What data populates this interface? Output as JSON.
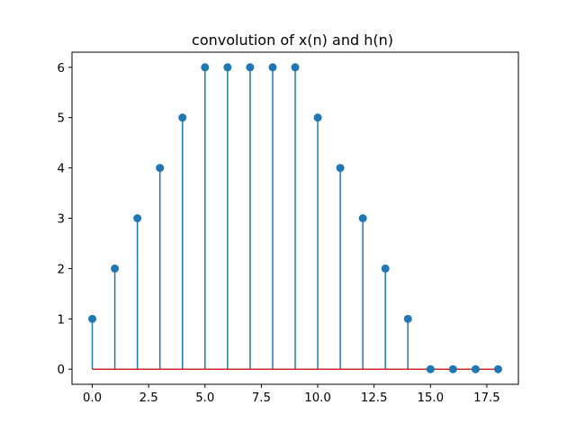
{
  "chart_data": {
    "type": "stem",
    "title": "convolution of x(n) and h(n)",
    "xlabel": "",
    "ylabel": "",
    "x": [
      0,
      1,
      2,
      3,
      4,
      5,
      6,
      7,
      8,
      9,
      10,
      11,
      12,
      13,
      14,
      15,
      16,
      17,
      18
    ],
    "values": [
      1,
      2,
      3,
      4,
      5,
      6,
      6,
      6,
      6,
      6,
      5,
      4,
      3,
      2,
      1,
      0,
      0,
      0,
      0
    ],
    "xlim": [
      -0.9,
      18.9
    ],
    "ylim": [
      -0.3,
      6.3
    ],
    "xticks": [
      0.0,
      2.5,
      5.0,
      7.5,
      10.0,
      12.5,
      15.0,
      17.5
    ],
    "xtick_labels": [
      "0.0",
      "2.5",
      "5.0",
      "7.5",
      "10.0",
      "12.5",
      "15.0",
      "17.5"
    ],
    "yticks": [
      0,
      1,
      2,
      3,
      4,
      5,
      6
    ],
    "ytick_labels": [
      "0",
      "1",
      "2",
      "3",
      "4",
      "5",
      "6"
    ],
    "grid": false,
    "colors": {
      "stem": "#1f77b4",
      "marker": "#1f77b4",
      "baseline": "#d62728",
      "axes": "#000000"
    }
  }
}
